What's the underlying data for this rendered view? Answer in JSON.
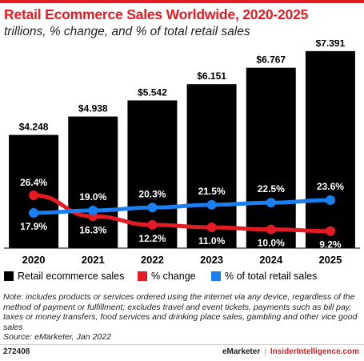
{
  "header": {
    "title": "Retail Ecommerce Sales Worldwide, 2020-2025",
    "subtitle": "trillions, % change, and % of total retail sales"
  },
  "chart_data": {
    "type": "bar",
    "categories": [
      "2020",
      "2021",
      "2022",
      "2023",
      "2024",
      "2025"
    ],
    "series": [
      {
        "name": "Retail ecommerce sales",
        "type": "bar",
        "color": "#000000",
        "values": [
          4.248,
          4.938,
          5.542,
          6.151,
          6.767,
          7.391
        ],
        "labels": [
          "$4.248",
          "$4.938",
          "$5.542",
          "$6.151",
          "$6.767",
          "$7.391"
        ]
      },
      {
        "name": "% change",
        "type": "line",
        "color": "#e31b23",
        "values": [
          26.4,
          16.3,
          12.2,
          11.0,
          10.0,
          9.2
        ],
        "labels": [
          "26.4%",
          "16.3%",
          "12.2%",
          "11.0%",
          "10.0%",
          "9.2%"
        ]
      },
      {
        "name": "% of total retail sales",
        "type": "line",
        "color": "#1a7ff0",
        "values": [
          17.9,
          19.0,
          20.3,
          21.5,
          22.5,
          23.6
        ],
        "labels": [
          "17.9%",
          "19.0%",
          "20.3%",
          "21.5%",
          "22.5%",
          "23.6%"
        ]
      }
    ],
    "legend_position": "bottom",
    "grid": false
  },
  "legend": {
    "items": [
      {
        "label": "Retail ecommerce sales",
        "color": "#000000"
      },
      {
        "label": "% change",
        "color": "#e31b23"
      },
      {
        "label": "% of total retail sales",
        "color": "#1a7ff0"
      }
    ]
  },
  "footer": {
    "note": "Note: includes products or services ordered using the internet via any device, regardless of the method of payment or fulfillment; excludes travel and event tickets, payments such as bill pay, taxes or money transfers, food services and drinking place sales, gambling and other vice good sales",
    "source": "Source: eMarketer, Jan 2022",
    "chart_id": "272408",
    "brand_primary": "eMarketer",
    "brand_separator": "|",
    "brand_secondary": "InsiderIntelligence.com"
  }
}
